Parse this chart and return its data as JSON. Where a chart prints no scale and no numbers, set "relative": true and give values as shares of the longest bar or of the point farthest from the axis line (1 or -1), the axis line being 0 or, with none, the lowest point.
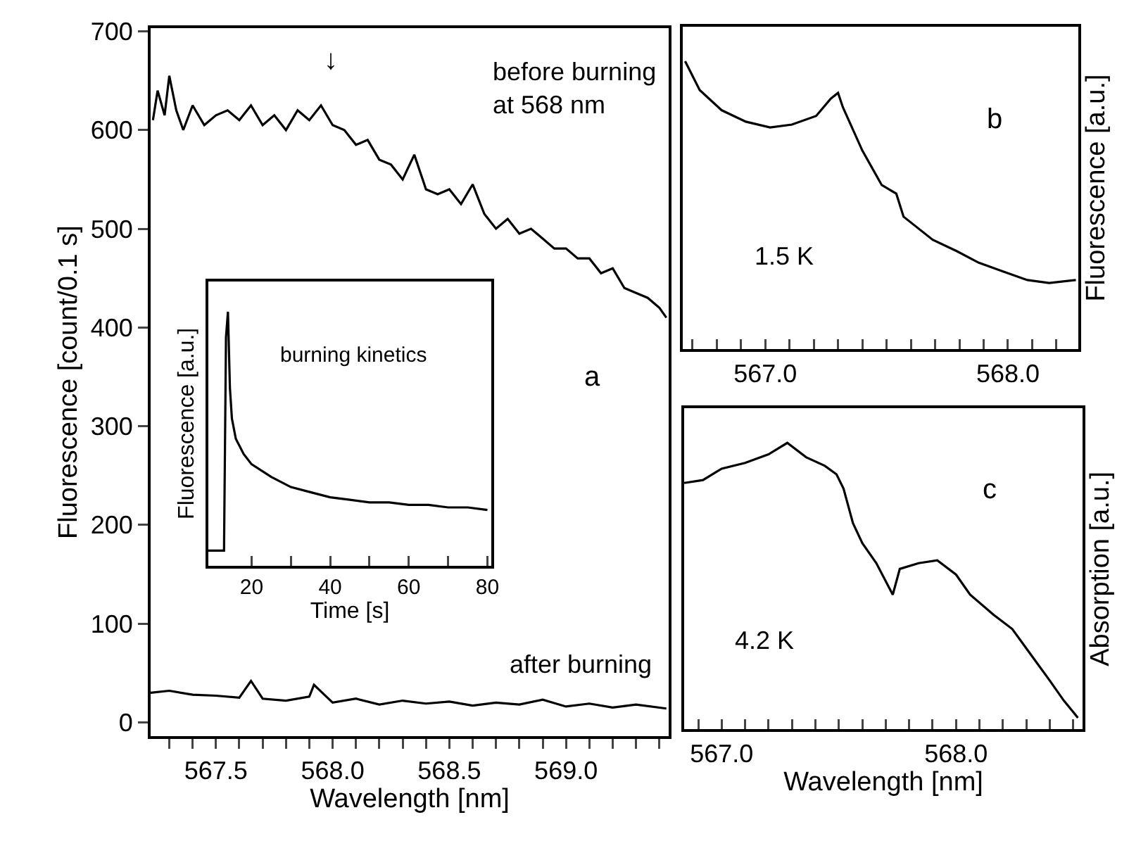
{
  "chart_data": [
    {
      "type": "line",
      "xlabel": "Wavelength [nm]",
      "ylabel": "Fluorescence [count/0.1 s]",
      "xlim": [
        567.22,
        569.44
      ],
      "ylim": [
        -14,
        703
      ],
      "xticks": [
        {
          "value": 567.3,
          "label": null
        },
        {
          "value": 567.4,
          "label": null
        },
        {
          "value": 567.5,
          "label": "567.5"
        },
        {
          "value": 567.6,
          "label": null
        },
        {
          "value": 567.7,
          "label": null
        },
        {
          "value": 567.8,
          "label": null
        },
        {
          "value": 567.9,
          "label": null
        },
        {
          "value": 568.0,
          "label": "568.0"
        },
        {
          "value": 568.1,
          "label": null
        },
        {
          "value": 568.2,
          "label": null
        },
        {
          "value": 568.3,
          "label": null
        },
        {
          "value": 568.4,
          "label": null
        },
        {
          "value": 568.5,
          "label": "568.5"
        },
        {
          "value": 568.6,
          "label": null
        },
        {
          "value": 568.7,
          "label": null
        },
        {
          "value": 568.8,
          "label": null
        },
        {
          "value": 568.9,
          "label": null
        },
        {
          "value": 569.0,
          "label": "569.0"
        },
        {
          "value": 569.1,
          "label": null
        },
        {
          "value": 569.2,
          "label": null
        },
        {
          "value": 569.3,
          "label": null
        },
        {
          "value": 569.4,
          "label": null
        }
      ],
      "yticks": [
        0,
        100,
        200,
        300,
        400,
        500,
        600,
        700
      ],
      "series": [
        {
          "color": "#000000",
          "x": [
            567.23,
            567.25,
            567.28,
            567.3,
            567.33,
            567.36,
            567.4,
            567.45,
            567.5,
            567.55,
            567.6,
            567.65,
            567.7,
            567.75,
            567.8,
            567.85,
            567.9,
            567.95,
            568.0,
            568.05,
            568.1,
            568.15,
            568.2,
            568.25,
            568.3,
            568.35,
            568.4,
            568.45,
            568.5,
            568.55,
            568.6,
            568.65,
            568.7,
            568.75,
            568.8,
            568.85,
            568.9,
            568.95,
            569.0,
            569.05,
            569.1,
            569.15,
            569.2,
            569.25,
            569.3,
            569.35,
            569.4,
            569.43
          ],
          "values": [
            610,
            640,
            615,
            655,
            620,
            600,
            625,
            605,
            615,
            620,
            610,
            625,
            605,
            615,
            600,
            620,
            610,
            625,
            605,
            600,
            585,
            590,
            570,
            565,
            550,
            575,
            540,
            535,
            540,
            525,
            545,
            515,
            500,
            510,
            495,
            500,
            490,
            480,
            480,
            470,
            470,
            455,
            460,
            440,
            435,
            430,
            420,
            410
          ]
        },
        {
          "color": "#000000",
          "x": [
            567.22,
            567.3,
            567.4,
            567.5,
            567.6,
            567.65,
            567.7,
            567.8,
            567.9,
            567.92,
            568.0,
            568.1,
            568.2,
            568.3,
            568.4,
            568.5,
            568.6,
            568.7,
            568.8,
            568.9,
            569.0,
            569.1,
            569.2,
            569.3,
            569.43
          ],
          "values": [
            30,
            32,
            28,
            27,
            25,
            42,
            24,
            22,
            26,
            38,
            20,
            24,
            18,
            22,
            19,
            21,
            17,
            20,
            18,
            23,
            16,
            19,
            15,
            18,
            14
          ]
        }
      ],
      "annotations": [
        "↓",
        "before burning\nat 568 nm",
        "a",
        "after burning"
      ],
      "grid": false
    },
    {
      "type": "line",
      "xlabel": "Time [s]",
      "ylabel": "Fluorescence [a.u.]",
      "relative": true,
      "tick_labels": "x",
      "xlim": [
        9,
        81
      ],
      "xticks": [
        20,
        {
          "value": 30,
          "label": null
        },
        40,
        {
          "value": 50,
          "label": null
        },
        60,
        {
          "value": 70,
          "label": null
        },
        80
      ],
      "series": [
        {
          "color": "#000000",
          "x": [
            9,
            10,
            13,
            13.5,
            14,
            14.5,
            15,
            16,
            18,
            20,
            25,
            30,
            35,
            40,
            45,
            50,
            55,
            60,
            65,
            70,
            75,
            80
          ],
          "values": [
            0.06,
            0.06,
            0.06,
            0.9,
            1.0,
            0.7,
            0.58,
            0.5,
            0.44,
            0.4,
            0.35,
            0.31,
            0.29,
            0.27,
            0.26,
            0.25,
            0.25,
            0.24,
            0.24,
            0.23,
            0.23,
            0.22
          ]
        }
      ],
      "annotations": [
        "burning kinetics"
      ],
      "grid": false
    },
    {
      "type": "line",
      "ylabel": "Fluorescence [a.u.]",
      "relative": true,
      "tick_labels": "x",
      "xlim": [
        566.66,
        568.29
      ],
      "xticks": [
        {
          "value": 566.7,
          "label": null
        },
        {
          "value": 566.8,
          "label": null
        },
        {
          "value": 566.9,
          "label": null
        },
        {
          "value": 567.0,
          "label": "567.0"
        },
        {
          "value": 567.1,
          "label": null
        },
        {
          "value": 567.2,
          "label": null
        },
        {
          "value": 567.3,
          "label": null
        },
        {
          "value": 567.4,
          "label": null
        },
        {
          "value": 567.5,
          "label": null
        },
        {
          "value": 567.6,
          "label": null
        },
        {
          "value": 567.7,
          "label": null
        },
        {
          "value": 567.8,
          "label": null
        },
        {
          "value": 567.9,
          "label": null
        },
        {
          "value": 568.0,
          "label": "568.0"
        },
        {
          "value": 568.1,
          "label": null
        },
        {
          "value": 568.2,
          "label": null
        }
      ],
      "series": [
        {
          "color": "#000000",
          "x": [
            566.67,
            566.73,
            566.82,
            566.92,
            567.02,
            567.11,
            567.21,
            567.27,
            567.3,
            567.32,
            567.4,
            567.48,
            567.54,
            567.57,
            567.69,
            567.79,
            567.88,
            567.98,
            568.08,
            568.17,
            568.28
          ],
          "values": [
            1.0,
            0.9,
            0.83,
            0.79,
            0.77,
            0.78,
            0.81,
            0.87,
            0.89,
            0.84,
            0.69,
            0.57,
            0.54,
            0.46,
            0.38,
            0.34,
            0.3,
            0.27,
            0.24,
            0.23,
            0.24
          ]
        }
      ],
      "annotations": [
        "b",
        "1.5 K"
      ],
      "grid": false
    },
    {
      "type": "line",
      "xlabel": "Wavelength [nm]",
      "ylabel": "Absorption [a.u.]",
      "relative": true,
      "tick_labels": "x",
      "xlim": [
        566.84,
        568.54
      ],
      "xticks": [
        {
          "value": 566.9,
          "label": null
        },
        {
          "value": 567.0,
          "label": "567.0"
        },
        {
          "value": 567.1,
          "label": null
        },
        {
          "value": 567.2,
          "label": null
        },
        {
          "value": 567.3,
          "label": null
        },
        {
          "value": 567.4,
          "label": null
        },
        {
          "value": 567.5,
          "label": null
        },
        {
          "value": 567.6,
          "label": null
        },
        {
          "value": 567.7,
          "label": null
        },
        {
          "value": 567.8,
          "label": null
        },
        {
          "value": 567.9,
          "label": null
        },
        {
          "value": 568.0,
          "label": "568.0"
        },
        {
          "value": 568.1,
          "label": null
        },
        {
          "value": 568.2,
          "label": null
        },
        {
          "value": 568.3,
          "label": null
        },
        {
          "value": 568.4,
          "label": null
        },
        {
          "value": 568.5,
          "label": null
        }
      ],
      "series": [
        {
          "color": "#000000",
          "x": [
            566.84,
            566.92,
            567.0,
            567.1,
            567.2,
            567.28,
            567.36,
            567.44,
            567.49,
            567.52,
            567.56,
            567.6,
            567.66,
            567.73,
            567.76,
            567.84,
            567.92,
            568.0,
            568.06,
            568.16,
            568.24,
            568.32,
            568.4,
            568.46,
            568.52
          ],
          "values": [
            0.86,
            0.87,
            0.91,
            0.93,
            0.96,
            1.0,
            0.95,
            0.92,
            0.89,
            0.84,
            0.72,
            0.65,
            0.58,
            0.47,
            0.56,
            0.58,
            0.59,
            0.54,
            0.47,
            0.4,
            0.35,
            0.26,
            0.17,
            0.1,
            0.04
          ]
        }
      ],
      "annotations": [
        "c",
        "4.2 K"
      ],
      "grid": false
    }
  ]
}
